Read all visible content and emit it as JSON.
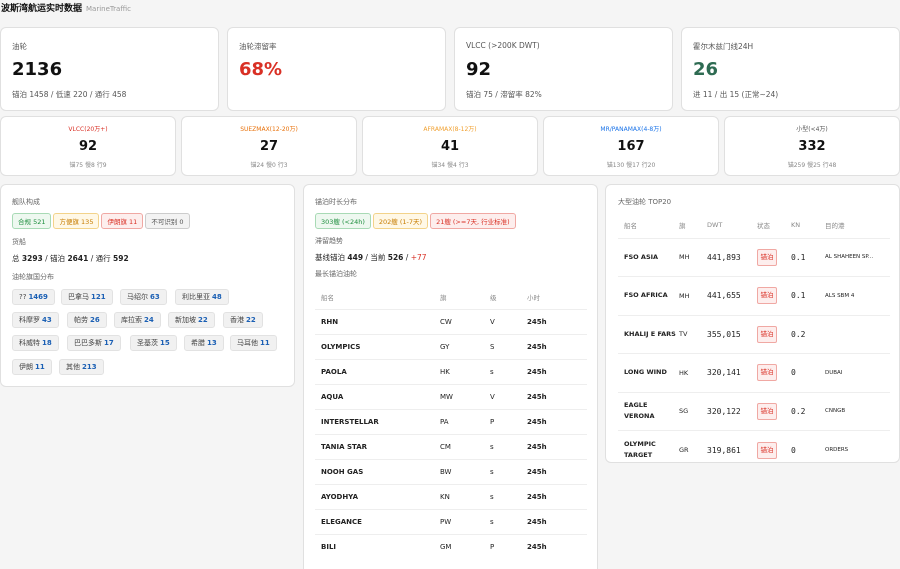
{
  "header": {
    "title": "波斯湾航运实时数据",
    "source": "MarineTraffic"
  },
  "stats": [
    {
      "label": "油轮",
      "value": "2136",
      "sub": "锚泊 1458 / 低速 220 / 通行 458"
    },
    {
      "label": "油轮滞留率",
      "value": "68%",
      "sub": ""
    },
    {
      "label": "VLCC (>200K DWT)",
      "value": "92",
      "sub": "锚泊 75 / 滞留率 82%"
    },
    {
      "label": "霍尔木兹门线24H",
      "value": "26",
      "sub": "进 11 / 出 15 (正常~24)"
    }
  ],
  "classes": [
    {
      "label": "VLCC(20万+)",
      "value": "92",
      "sub": "锚75 慢8 行9",
      "color": "#d93025"
    },
    {
      "label": "SUEZMAX(12-20万)",
      "value": "27",
      "sub": "锚24 慢0 行3",
      "color": "#e8710a"
    },
    {
      "label": "AFRAMAX(8-12万)",
      "value": "41",
      "sub": "锚34 慢4 行3",
      "color": "#f0a030"
    },
    {
      "label": "MR/PANAMAX(4-8万)",
      "value": "167",
      "sub": "锚130 慢17 行20",
      "color": "#1a73e8"
    },
    {
      "label": "小型(<4万)",
      "value": "332",
      "sub": "锚259 慢25 行48",
      "color": "#555555"
    }
  ],
  "fleet": {
    "title": "舰队构成",
    "tags": [
      {
        "text": "合规 521",
        "color": "green"
      },
      {
        "text": "方便旗 135",
        "color": "yellow"
      },
      {
        "text": "伊朗旗 11",
        "color": "red"
      },
      {
        "text": "不可识别 0",
        "color": "gray"
      }
    ],
    "ships_title": "货船",
    "ships_prefix1": "总 ",
    "ships_total": "3293",
    "ships_prefix2": " / 锚泊 ",
    "ships_anchor": "2641",
    "ships_prefix3": " / 通行 ",
    "ships_transit": "592",
    "flags_title": "油轮旗国分布",
    "flags": [
      {
        "name": "??",
        "count": "1469"
      },
      {
        "name": "巴拿马",
        "count": "121"
      },
      {
        "name": "马绍尔",
        "count": "63"
      },
      {
        "name": "利比里亚",
        "count": "48"
      },
      {
        "name": "科摩罗",
        "count": "43"
      },
      {
        "name": "帕劳",
        "count": "26"
      },
      {
        "name": "库拉索",
        "count": "24"
      },
      {
        "name": "新加坡",
        "count": "22"
      },
      {
        "name": "香港",
        "count": "22"
      },
      {
        "name": "科威特",
        "count": "18"
      },
      {
        "name": "巴巴多斯",
        "count": "17"
      },
      {
        "name": "圣基茨",
        "count": "15"
      },
      {
        "name": "希腊",
        "count": "13"
      },
      {
        "name": "马耳他",
        "count": "11"
      },
      {
        "name": "伊朗",
        "count": "11"
      },
      {
        "name": "其他",
        "count": "213"
      }
    ]
  },
  "anchor": {
    "title": "锚泊时长分布",
    "tags": [
      {
        "text": "303艘 (<24h)",
        "color": "green"
      },
      {
        "text": "202艘 (1-7天)",
        "color": "yellow"
      },
      {
        "text": "21艘 (>=7天, 行业标准)",
        "color": "red"
      }
    ],
    "trend_title": "滞留趋势",
    "trend_p1": "基线锚泊 ",
    "trend_base": "449",
    "trend_p2": " / 当前 ",
    "trend_cur": "526",
    "trend_p3": " / ",
    "trend_delta": "+77",
    "longest_title": "最长锚泊油轮",
    "cols": [
      "船名",
      "旗",
      "级",
      "小时"
    ],
    "rows": [
      {
        "name": "RHN",
        "flag": "CW",
        "cls": "V",
        "hours": "245h"
      },
      {
        "name": "OLYMPICS",
        "flag": "GY",
        "cls": "S",
        "hours": "245h"
      },
      {
        "name": "PAOLA",
        "flag": "HK",
        "cls": "s",
        "hours": "245h"
      },
      {
        "name": "AQUA",
        "flag": "MW",
        "cls": "V",
        "hours": "245h"
      },
      {
        "name": "INTERSTELLAR",
        "flag": "PA",
        "cls": "P",
        "hours": "245h"
      },
      {
        "name": "TANIA STAR",
        "flag": "CM",
        "cls": "s",
        "hours": "245h"
      },
      {
        "name": "NOOH GAS",
        "flag": "BW",
        "cls": "s",
        "hours": "245h"
      },
      {
        "name": "AYODHYA",
        "flag": "KN",
        "cls": "s",
        "hours": "245h"
      },
      {
        "name": "ELEGANCE",
        "flag": "PW",
        "cls": "s",
        "hours": "245h"
      },
      {
        "name": "BILI",
        "flag": "GM",
        "cls": "P",
        "hours": "245h"
      }
    ]
  },
  "top20": {
    "title": "大型油轮 TOP20",
    "cols": [
      "船名",
      "旗",
      "DWT",
      "状态",
      "KN",
      "目的港"
    ],
    "rows": [
      {
        "name": "FSO ASIA",
        "flag": "MH",
        "dwt": "441,893",
        "status": "锚泊",
        "kn": "0.1",
        "dest": "AL SHAHEEN SP..."
      },
      {
        "name": "FSO AFRICA",
        "flag": "MH",
        "dwt": "441,655",
        "status": "锚泊",
        "kn": "0.1",
        "dest": "ALS SBM 4"
      },
      {
        "name": "KHALIJ E FARS",
        "flag": "TV",
        "dwt": "355,015",
        "status": "锚泊",
        "kn": "0.2",
        "dest": ""
      },
      {
        "name": "LONG WIND",
        "flag": "HK",
        "dwt": "320,141",
        "status": "锚泊",
        "kn": "0",
        "dest": "DUBAI"
      },
      {
        "name": "EAGLE VERONA",
        "flag": "SG",
        "dwt": "320,122",
        "status": "锚泊",
        "kn": "0.2",
        "dest": "CNNGB"
      },
      {
        "name": "OLYMPIC TARGET",
        "flag": "GR",
        "dwt": "319,861",
        "status": "锚泊",
        "kn": "0",
        "dest": "ORDERS"
      }
    ]
  }
}
